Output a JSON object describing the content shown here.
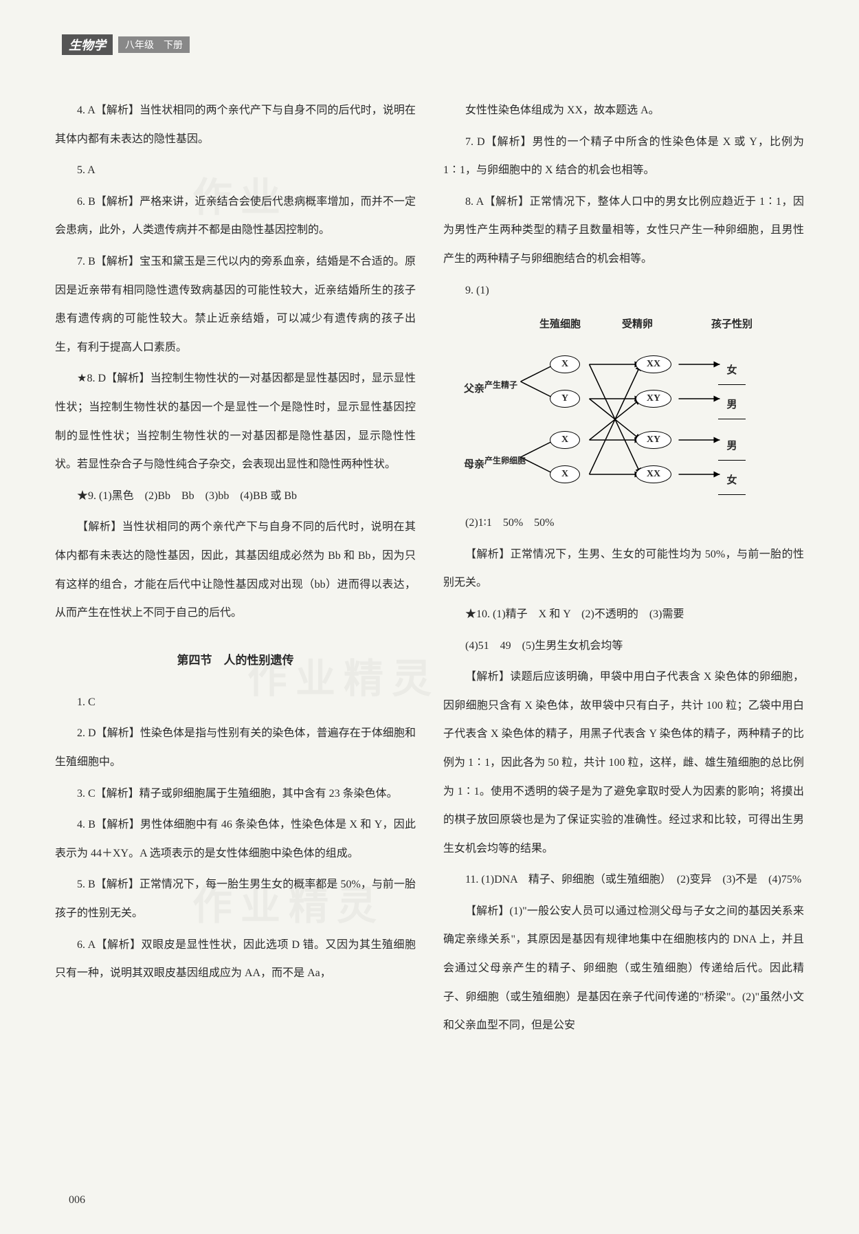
{
  "header": {
    "subject": "生物学",
    "grade": "八年级　下册"
  },
  "left_column": [
    {
      "cls": "para",
      "text": "4. A【解析】当性状相同的两个亲代产下与自身不同的后代时，说明在其体内都有未表达的隐性基因。"
    },
    {
      "cls": "para",
      "text": "5. A"
    },
    {
      "cls": "para",
      "text": "6. B【解析】严格来讲，近亲结合会使后代患病概率增加，而并不一定会患病，此外，人类遗传病并不都是由隐性基因控制的。"
    },
    {
      "cls": "para",
      "text": "7. B【解析】宝玉和黛玉是三代以内的旁系血亲，结婚是不合适的。原因是近亲带有相同隐性遗传致病基因的可能性较大，近亲结婚所生的孩子患有遗传病的可能性较大。禁止近亲结婚，可以减少有遗传病的孩子出生，有利于提高人口素质。"
    },
    {
      "cls": "para",
      "text": "★8. D【解析】当控制生物性状的一对基因都是显性基因时，显示显性性状；当控制生物性状的基因一个是显性一个是隐性时，显示显性基因控制的显性性状；当控制生物性状的一对基因都是隐性基因，显示隐性性状。若显性杂合子与隐性纯合子杂交，会表现出显性和隐性两种性状。"
    },
    {
      "cls": "para",
      "text": "★9. (1)黑色　(2)Bb　Bb　(3)bb　(4)BB 或 Bb"
    },
    {
      "cls": "para",
      "text": "【解析】当性状相同的两个亲代产下与自身不同的后代时，说明在其体内都有未表达的隐性基因，因此，其基因组成必然为 Bb 和 Bb，因为只有这样的组合，才能在后代中让隐性基因成对出现（bb）进而得以表达，从而产生在性状上不同于自己的后代。"
    },
    {
      "cls": "section-title",
      "text": "第四节　人的性别遗传"
    },
    {
      "cls": "para",
      "text": "1. C"
    },
    {
      "cls": "para",
      "text": "2. D【解析】性染色体是指与性别有关的染色体，普遍存在于体细胞和生殖细胞中。"
    },
    {
      "cls": "para",
      "text": "3. C【解析】精子或卵细胞属于生殖细胞，其中含有 23 条染色体。"
    },
    {
      "cls": "para",
      "text": "4. B【解析】男性体细胞中有 46 条染色体，性染色体是 X 和 Y，因此表示为 44＋XY。A 选项表示的是女性体细胞中染色体的组成。"
    },
    {
      "cls": "para",
      "text": "5. B【解析】正常情况下，每一胎生男生女的概率都是 50%，与前一胎孩子的性别无关。"
    },
    {
      "cls": "para",
      "text": "6. A【解析】双眼皮是显性性状，因此选项 D 错。又因为其生殖细胞只有一种，说明其双眼皮基因组成应为 AA，而不是 Aa，"
    }
  ],
  "right_column_top": [
    {
      "cls": "para",
      "text": "女性性染色体组成为 XX，故本题选 A。"
    },
    {
      "cls": "para",
      "text": "7. D【解析】男性的一个精子中所含的性染色体是 X 或 Y，比例为 1∶1，与卵细胞中的 X 结合的机会也相等。"
    },
    {
      "cls": "para",
      "text": "8. A【解析】正常情况下，整体人口中的男女比例应趋近于 1∶1，因为男性产生两种类型的精子且数量相等，女性只产生一种卵细胞，且男性产生的两种精子与卵细胞结合的机会相等。"
    },
    {
      "cls": "para",
      "text": "9. (1)"
    }
  ],
  "diagram": {
    "headers": [
      "生殖细胞",
      "受精卵",
      "孩子性别"
    ],
    "father_label": "父亲",
    "father_process": "产生精子",
    "mother_label": "母亲",
    "mother_process": "产生卵细胞",
    "gametes": [
      "X",
      "Y",
      "X",
      "X"
    ],
    "zygotes": [
      "XX",
      "XY",
      "XY",
      "XX"
    ],
    "sexes": [
      "女",
      "男",
      "男",
      "女"
    ]
  },
  "right_column_bottom": [
    {
      "cls": "para",
      "text": "(2)1∶1　50%　50%"
    },
    {
      "cls": "para",
      "text": "【解析】正常情况下，生男、生女的可能性均为 50%，与前一胎的性别无关。"
    },
    {
      "cls": "para",
      "text": "★10. (1)精子　X 和 Y　(2)不透明的　(3)需要"
    },
    {
      "cls": "para",
      "text": "(4)51　49　(5)生男生女机会均等"
    },
    {
      "cls": "para",
      "text": "【解析】读题后应该明确，甲袋中用白子代表含 X 染色体的卵细胞，因卵细胞只含有 X 染色体，故甲袋中只有白子，共计 100 粒；乙袋中用白子代表含 X 染色体的精子，用黑子代表含 Y 染色体的精子，两种精子的比例为 1∶1，因此各为 50 粒，共计 100 粒，这样，雌、雄生殖细胞的总比例为 1∶1。使用不透明的袋子是为了避免拿取时受人为因素的影响；将摸出的棋子放回原袋也是为了保证实验的准确性。经过求和比较，可得出生男生女机会均等的结果。"
    },
    {
      "cls": "para",
      "text": "11. (1)DNA　精子、卵细胞（或生殖细胞）　(2)变异　(3)不是　(4)75%"
    },
    {
      "cls": "para",
      "text": "【解析】(1)\"一般公安人员可以通过检测父母与子女之间的基因关系来确定亲缘关系\"，其原因是基因有规律地集中在细胞核内的 DNA 上，并且会通过父母亲产生的精子、卵细胞（或生殖细胞）传递给后代。因此精子、卵细胞（或生殖细胞）是基因在亲子代间传递的\"桥梁\"。(2)\"虽然小文和父亲血型不同，但是公安"
    }
  ],
  "page_number": "006"
}
